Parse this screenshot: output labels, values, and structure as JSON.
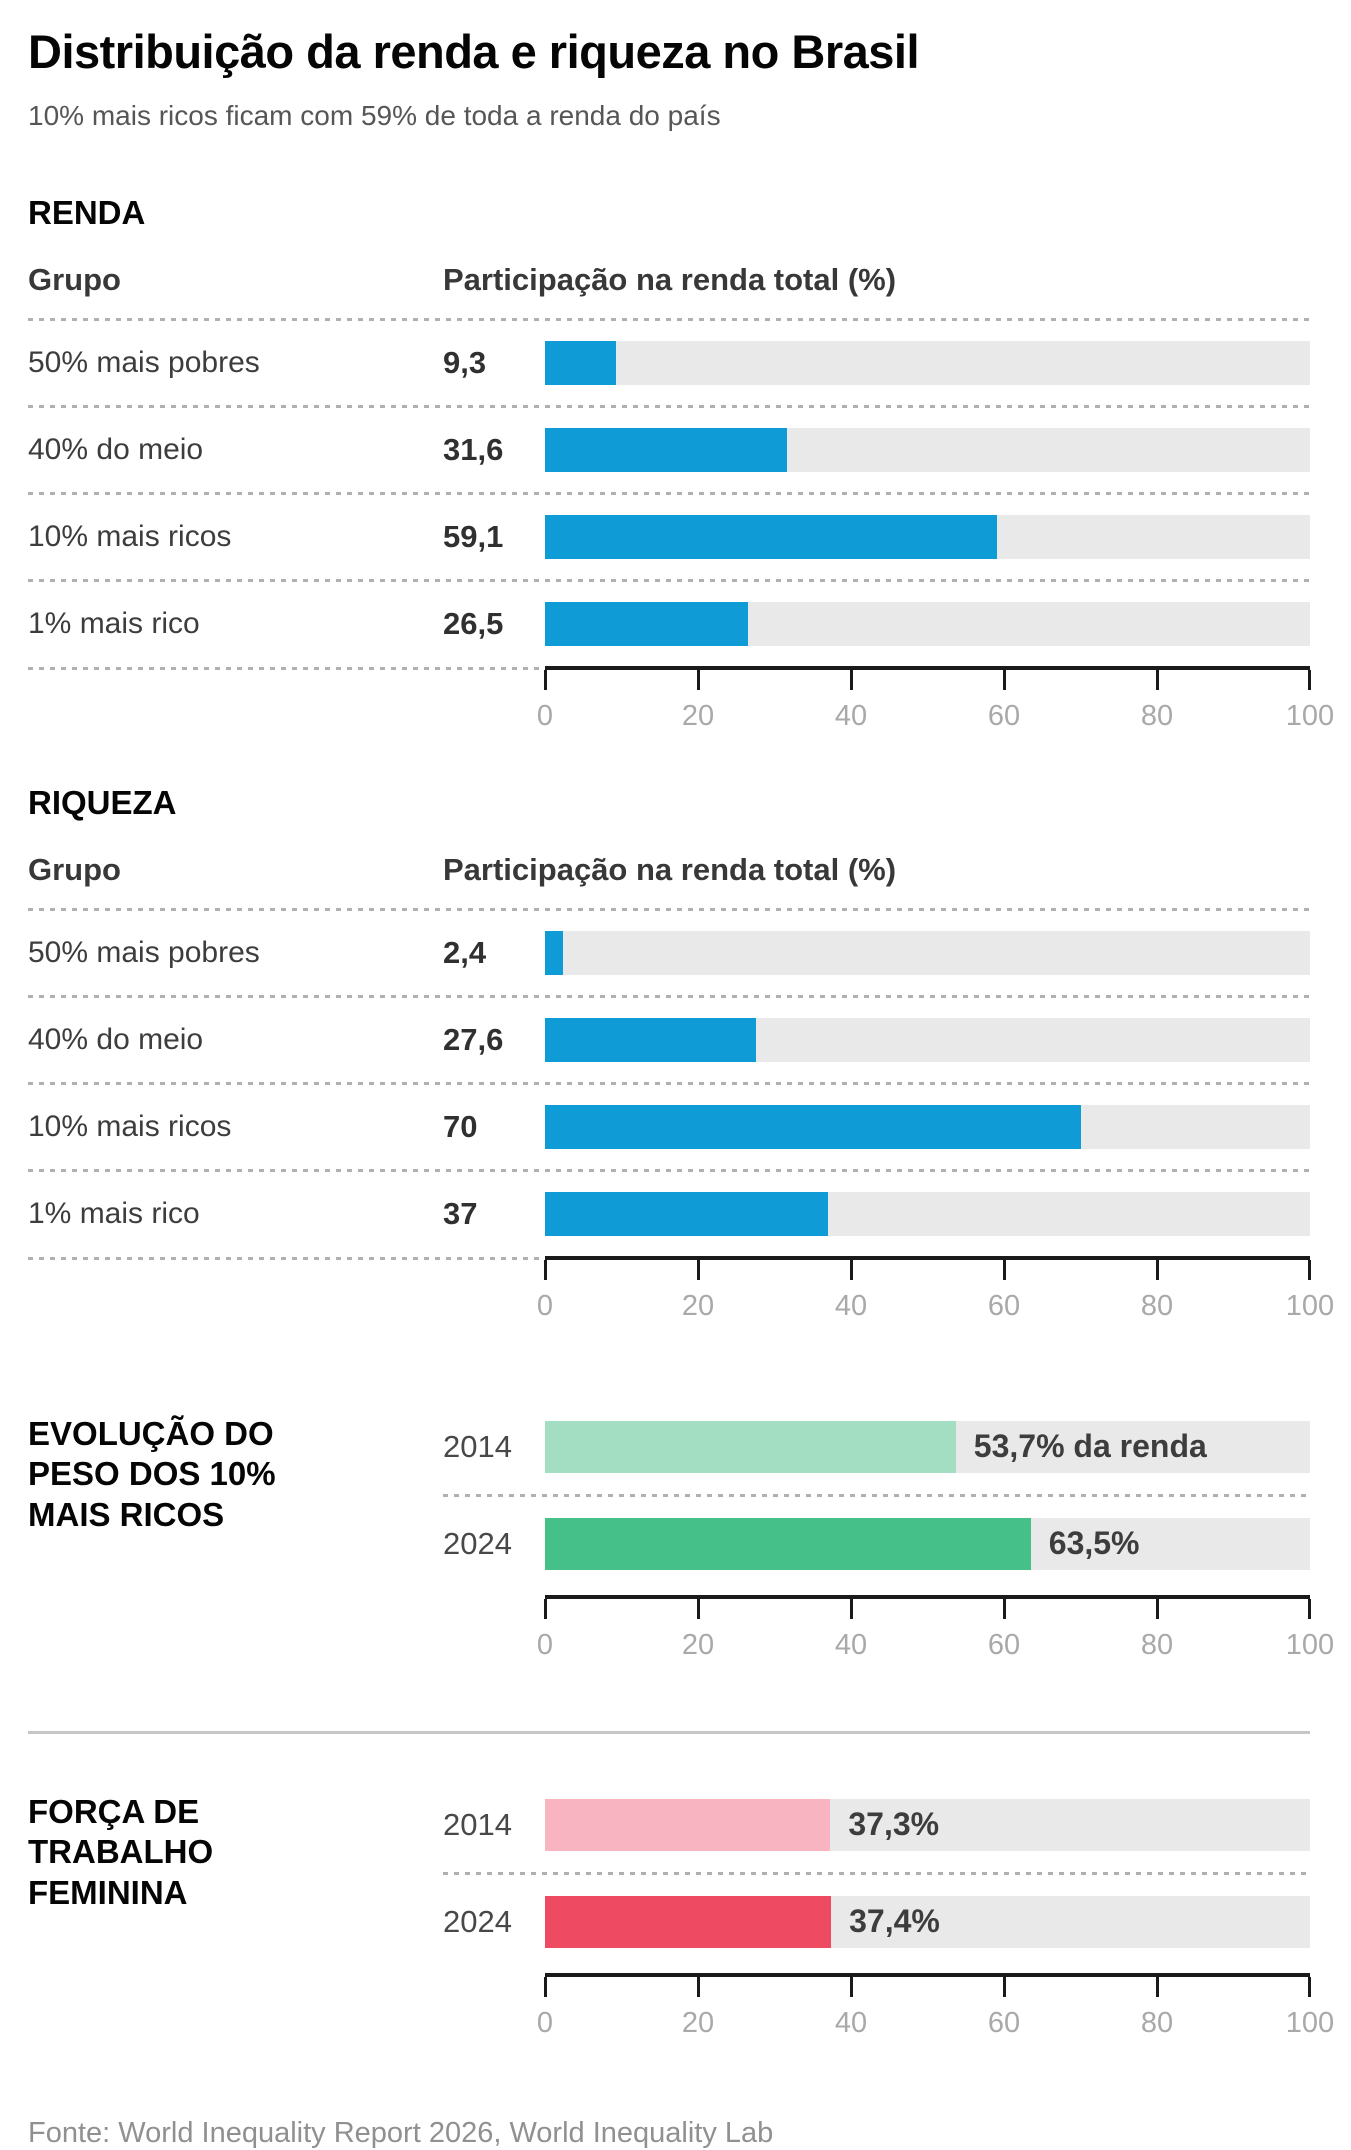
{
  "header": {
    "title": "Distribuição da renda e riqueza no Brasil",
    "subtitle": "10% mais ricos ficam com 59% de toda a renda do país"
  },
  "axis": {
    "ticks": [
      "0",
      "20",
      "40",
      "60",
      "80",
      "100"
    ]
  },
  "colors": {
    "bar_blue": "#0f9bd5",
    "track_gray": "#e9e9e9",
    "green_light": "#a3dec2",
    "green": "#45c089",
    "pink": "#f8b4c0",
    "red": "#ee4a62",
    "axis_line": "#1a1a1a",
    "tick_label": "#a9a9a9"
  },
  "sections": {
    "renda": {
      "title": "RENDA",
      "col_group": "Grupo",
      "col_value": "Participação na renda total (%)",
      "rows": [
        {
          "label": "50% mais pobres",
          "value_label": "9,3",
          "value": 9.3
        },
        {
          "label": "40% do meio",
          "value_label": "31,6",
          "value": 31.6
        },
        {
          "label": "10% mais ricos",
          "value_label": "59,1",
          "value": 59.1
        },
        {
          "label": "1% mais rico",
          "value_label": "26,5",
          "value": 26.5
        }
      ]
    },
    "riqueza": {
      "title": "RIQUEZA",
      "col_group": "Grupo",
      "col_value": "Participação na renda total (%)",
      "rows": [
        {
          "label": "50% mais pobres",
          "value_label": "2,4",
          "value": 2.4
        },
        {
          "label": "40% do meio",
          "value_label": "27,6",
          "value": 27.6
        },
        {
          "label": "10% mais ricos",
          "value_label": "70",
          "value": 70
        },
        {
          "label": "1% mais rico",
          "value_label": "37",
          "value": 37
        }
      ]
    },
    "evolucao": {
      "title": "EVOLUÇÃO DO\nPESO DOS 10%\nMAIS RICOS",
      "rows": [
        {
          "year": "2014",
          "value_label": "53,7% da renda",
          "value": 53.7
        },
        {
          "year": "2024",
          "value_label": "63,5%",
          "value": 63.5
        }
      ]
    },
    "forca": {
      "title": "FORÇA DE\nTRABALHO\nFEMININA",
      "rows": [
        {
          "year": "2014",
          "value_label": "37,3%",
          "value": 37.3
        },
        {
          "year": "2024",
          "value_label": "37,4%",
          "value": 37.4
        }
      ]
    }
  },
  "footer": {
    "source": "Fonte: World Inequality Report 2026, World Inequality Lab"
  },
  "chart_data": [
    {
      "type": "bar",
      "orientation": "horizontal",
      "title": "RENDA",
      "xlabel": "Participação na renda total (%)",
      "categories": [
        "50% mais pobres",
        "40% do meio",
        "10% mais ricos",
        "1% mais rico"
      ],
      "values": [
        9.3,
        31.6,
        59.1,
        26.5
      ],
      "xlim": [
        0,
        100
      ],
      "xticks": [
        0,
        20,
        40,
        60,
        80,
        100
      ],
      "bar_color": "#0f9bd5",
      "grid": false,
      "legend": false
    },
    {
      "type": "bar",
      "orientation": "horizontal",
      "title": "RIQUEZA",
      "xlabel": "Participação na renda total (%)",
      "categories": [
        "50% mais pobres",
        "40% do meio",
        "10% mais ricos",
        "1% mais rico"
      ],
      "values": [
        2.4,
        27.6,
        70,
        37
      ],
      "xlim": [
        0,
        100
      ],
      "xticks": [
        0,
        20,
        40,
        60,
        80,
        100
      ],
      "bar_color": "#0f9bd5",
      "grid": false,
      "legend": false
    },
    {
      "type": "bar",
      "orientation": "horizontal",
      "title": "EVOLUÇÃO DO PESO DOS 10% MAIS RICOS",
      "categories": [
        "2014",
        "2024"
      ],
      "values": [
        53.7,
        63.5
      ],
      "data_labels": [
        "53,7% da renda",
        "63,5%"
      ],
      "bar_colors": [
        "#a3dec2",
        "#45c089"
      ],
      "xlim": [
        0,
        100
      ],
      "xticks": [
        0,
        20,
        40,
        60,
        80,
        100
      ],
      "grid": false,
      "legend": false
    },
    {
      "type": "bar",
      "orientation": "horizontal",
      "title": "FORÇA DE TRABALHO FEMININA",
      "categories": [
        "2014",
        "2024"
      ],
      "values": [
        37.3,
        37.4
      ],
      "data_labels": [
        "37,3%",
        "37,4%"
      ],
      "bar_colors": [
        "#f8b4c0",
        "#ee4a62"
      ],
      "xlim": [
        0,
        100
      ],
      "xticks": [
        0,
        20,
        40,
        60,
        80,
        100
      ],
      "grid": false,
      "legend": false
    }
  ]
}
